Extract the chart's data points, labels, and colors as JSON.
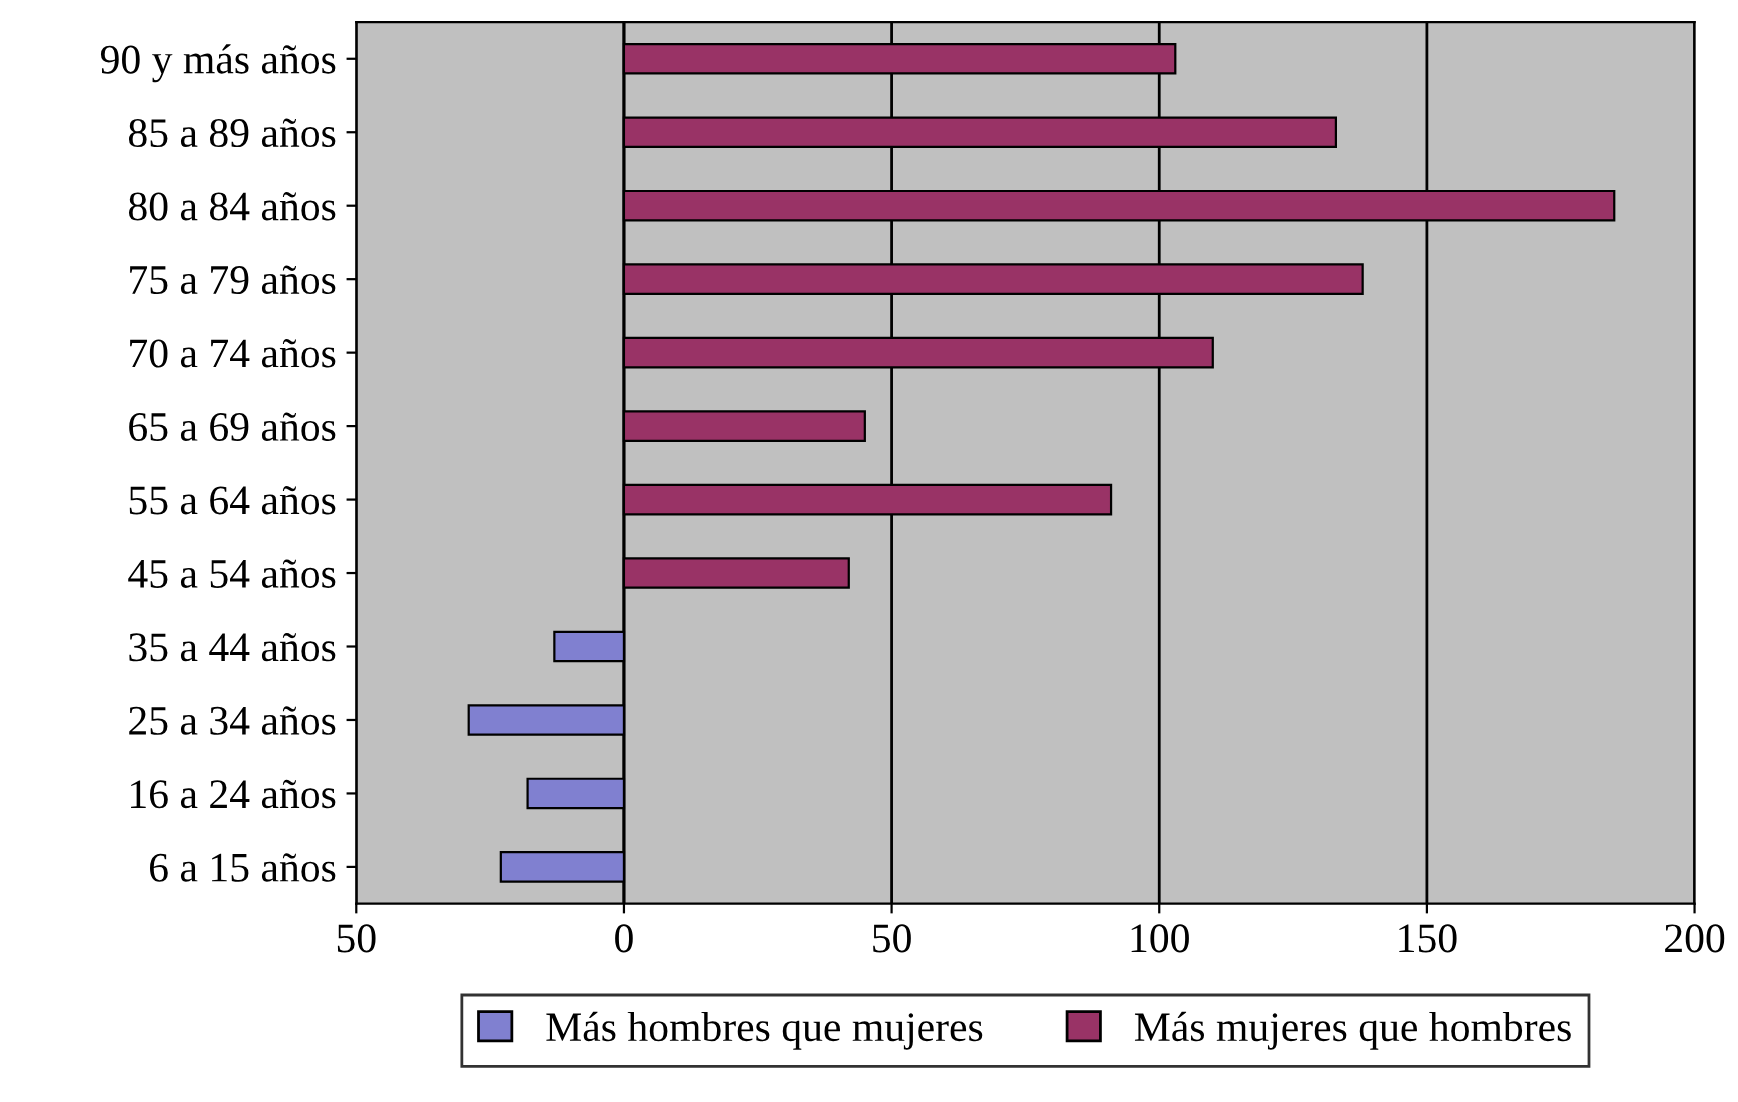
{
  "chart_data": {
    "type": "bar",
    "orientation": "horizontal",
    "categories": [
      "90 y más años",
      "85 a 89 años",
      "80 a 84 años",
      "75 a 79 años",
      "70 a 74 años",
      "65 a 69 años",
      "55 a 64 años",
      "45 a 54 años",
      "35 a 44 años",
      "25 a 34 años",
      "16 a 24 años",
      "6 a 15 años"
    ],
    "series": [
      {
        "name": "Más hombres que mujeres",
        "color": "#8080d0",
        "values": [
          null,
          null,
          null,
          null,
          null,
          null,
          null,
          null,
          -13,
          -29,
          -18,
          -23
        ]
      },
      {
        "name": "Más mujeres que hombres",
        "color": "#993366",
        "values": [
          103,
          133,
          185,
          138,
          110,
          45,
          91,
          42,
          null,
          null,
          null,
          null
        ]
      }
    ],
    "xlim": [
      -50,
      200
    ],
    "xticks": [
      {
        "value": -50,
        "label": "50"
      },
      0,
      50,
      100,
      150,
      200
    ],
    "grid": "x",
    "legend": "bottom"
  }
}
